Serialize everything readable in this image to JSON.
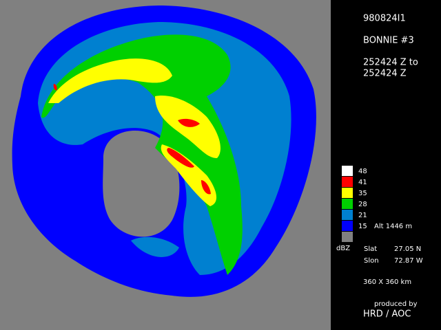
{
  "header": {
    "id": "980824I1",
    "storm": "BONNIE #3",
    "time_from": "252424 Z to",
    "time_to": "252424 Z"
  },
  "legend": {
    "unit": "dBZ",
    "items": [
      {
        "label": "48",
        "color": "#ffffff"
      },
      {
        "label": "41",
        "color": "#ff0000"
      },
      {
        "label": "35",
        "color": "#ffff00"
      },
      {
        "label": "28",
        "color": "#00d000"
      },
      {
        "label": "21",
        "color": "#0080d0"
      },
      {
        "label": "15",
        "color": "#0000ff"
      },
      {
        "label": null,
        "color": "#808080"
      }
    ],
    "altitude": "Alt  1446 m"
  },
  "location": {
    "slat_label": "Slat",
    "slat": "27.05 N",
    "slon_label": "Slon",
    "slon": "72.87 W"
  },
  "domain_size": "360 X 360 km",
  "credit": {
    "line1": "produced by",
    "line2": "HRD / AOC"
  }
}
